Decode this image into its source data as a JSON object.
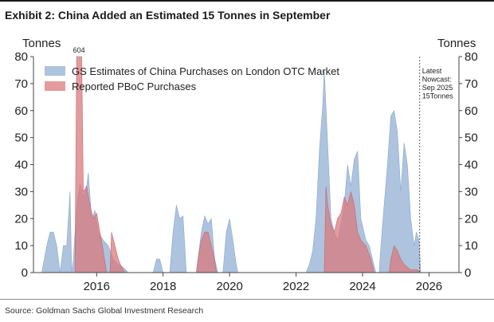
{
  "header": {
    "title": "Exhibit 2: China Added an Estimated 15 Tonnes in September"
  },
  "footer": {
    "source": "Source: Goldman Sachs Global Investment Research"
  },
  "colors": {
    "gs_estimates": "#9fb9d8",
    "pboc": "#d97a7e",
    "axis": "#444444"
  },
  "chart_data": {
    "type": "area",
    "title": "Exhibit 2: China Added an Estimated 15 Tonnes in September",
    "ylabel_left": "Tonnes",
    "ylabel_right": "Tonnes",
    "xlim": [
      2014.1,
      2026.9
    ],
    "ylim": [
      0,
      80
    ],
    "x_ticks": [
      2016,
      2018,
      2020,
      2022,
      2024,
      2026
    ],
    "y_ticks": [
      0,
      10,
      20,
      30,
      40,
      50,
      60,
      70,
      80
    ],
    "legend_position": "top-left",
    "grid": false,
    "series": [
      {
        "name": "GS Estimates of China Purchases on London OTC Market",
        "points": [
          [
            2014.35,
            0
          ],
          [
            2014.5,
            10
          ],
          [
            2014.6,
            15
          ],
          [
            2014.7,
            15
          ],
          [
            2014.8,
            10
          ],
          [
            2014.9,
            0
          ],
          [
            2015.0,
            10
          ],
          [
            2015.1,
            10
          ],
          [
            2015.2,
            30
          ],
          [
            2015.25,
            0
          ],
          [
            2015.3,
            5
          ],
          [
            2015.4,
            25
          ],
          [
            2015.5,
            33
          ],
          [
            2015.6,
            28
          ],
          [
            2015.7,
            32
          ],
          [
            2015.75,
            37
          ],
          [
            2015.85,
            20
          ],
          [
            2015.95,
            23
          ],
          [
            2016.05,
            15
          ],
          [
            2016.2,
            12
          ],
          [
            2016.35,
            10
          ],
          [
            2016.5,
            5
          ],
          [
            2016.65,
            3
          ],
          [
            2016.8,
            2
          ],
          [
            2016.95,
            0
          ],
          [
            2017.7,
            0
          ],
          [
            2017.8,
            5
          ],
          [
            2017.9,
            5
          ],
          [
            2018.0,
            0
          ],
          [
            2018.2,
            0
          ],
          [
            2018.3,
            15
          ],
          [
            2018.4,
            25
          ],
          [
            2018.5,
            20
          ],
          [
            2018.6,
            21
          ],
          [
            2018.7,
            0
          ],
          [
            2019.0,
            0
          ],
          [
            2019.15,
            15
          ],
          [
            2019.25,
            21
          ],
          [
            2019.35,
            18
          ],
          [
            2019.45,
            20
          ],
          [
            2019.55,
            5
          ],
          [
            2019.65,
            0
          ],
          [
            2019.8,
            0
          ],
          [
            2019.9,
            15
          ],
          [
            2020.0,
            20
          ],
          [
            2020.1,
            12
          ],
          [
            2020.2,
            3
          ],
          [
            2020.25,
            0
          ],
          [
            2022.3,
            0
          ],
          [
            2022.4,
            3
          ],
          [
            2022.5,
            8
          ],
          [
            2022.6,
            20
          ],
          [
            2022.7,
            45
          ],
          [
            2022.8,
            62
          ],
          [
            2022.85,
            75
          ],
          [
            2022.95,
            48
          ],
          [
            2023.05,
            20
          ],
          [
            2023.15,
            15
          ],
          [
            2023.25,
            12
          ],
          [
            2023.35,
            18
          ],
          [
            2023.45,
            25
          ],
          [
            2023.55,
            40
          ],
          [
            2023.65,
            32
          ],
          [
            2023.75,
            42
          ],
          [
            2023.85,
            45
          ],
          [
            2023.95,
            20
          ],
          [
            2024.1,
            12
          ],
          [
            2024.2,
            10
          ],
          [
            2024.3,
            5
          ],
          [
            2024.4,
            0
          ],
          [
            2024.5,
            0
          ],
          [
            2024.55,
            10
          ],
          [
            2024.65,
            25
          ],
          [
            2024.75,
            40
          ],
          [
            2024.85,
            58
          ],
          [
            2024.95,
            60
          ],
          [
            2025.05,
            52
          ],
          [
            2025.15,
            30
          ],
          [
            2025.25,
            48
          ],
          [
            2025.35,
            40
          ],
          [
            2025.45,
            20
          ],
          [
            2025.55,
            10
          ],
          [
            2025.62,
            15
          ],
          [
            2025.7,
            12
          ],
          [
            2025.75,
            0
          ]
        ]
      },
      {
        "name": "Reported PBoC Purchases",
        "points": [
          [
            2015.35,
            0
          ],
          [
            2015.4,
            80
          ],
          [
            2015.55,
            80
          ],
          [
            2015.6,
            30
          ],
          [
            2015.7,
            32
          ],
          [
            2015.8,
            25
          ],
          [
            2015.9,
            20
          ],
          [
            2016.0,
            22
          ],
          [
            2016.1,
            15
          ],
          [
            2016.2,
            8
          ],
          [
            2016.3,
            0
          ],
          [
            2016.4,
            0
          ],
          [
            2016.45,
            15
          ],
          [
            2016.55,
            10
          ],
          [
            2016.65,
            5
          ],
          [
            2016.75,
            2
          ],
          [
            2016.85,
            0
          ],
          [
            2019.0,
            0
          ],
          [
            2019.05,
            5
          ],
          [
            2019.15,
            12
          ],
          [
            2019.25,
            15
          ],
          [
            2019.35,
            15
          ],
          [
            2019.45,
            10
          ],
          [
            2019.55,
            5
          ],
          [
            2019.6,
            0
          ],
          [
            2022.85,
            0
          ],
          [
            2022.9,
            32
          ],
          [
            2022.95,
            25
          ],
          [
            2023.05,
            18
          ],
          [
            2023.15,
            15
          ],
          [
            2023.25,
            20
          ],
          [
            2023.35,
            22
          ],
          [
            2023.45,
            28
          ],
          [
            2023.55,
            25
          ],
          [
            2023.65,
            30
          ],
          [
            2023.75,
            25
          ],
          [
            2023.85,
            15
          ],
          [
            2023.95,
            12
          ],
          [
            2024.1,
            10
          ],
          [
            2024.25,
            5
          ],
          [
            2024.35,
            0
          ],
          [
            2024.8,
            0
          ],
          [
            2024.85,
            5
          ],
          [
            2024.95,
            10
          ],
          [
            2025.05,
            8
          ],
          [
            2025.15,
            5
          ],
          [
            2025.25,
            3
          ],
          [
            2025.35,
            2
          ],
          [
            2025.45,
            1
          ],
          [
            2025.55,
            1
          ],
          [
            2025.65,
            1
          ],
          [
            2025.72,
            0
          ]
        ]
      }
    ],
    "annotations": [
      {
        "text": "604",
        "x": 2015.47,
        "y": 80
      },
      {
        "text": "Latest",
        "x": 2025.75,
        "y": 75
      },
      {
        "text": "Nowcast:",
        "x": 2025.75,
        "y": 72
      },
      {
        "text": "Sep 2025",
        "x": 2025.75,
        "y": 69
      },
      {
        "text": "15Tonnes",
        "x": 2025.75,
        "y": 66
      }
    ],
    "nowcast_marker_x": 2025.72
  }
}
